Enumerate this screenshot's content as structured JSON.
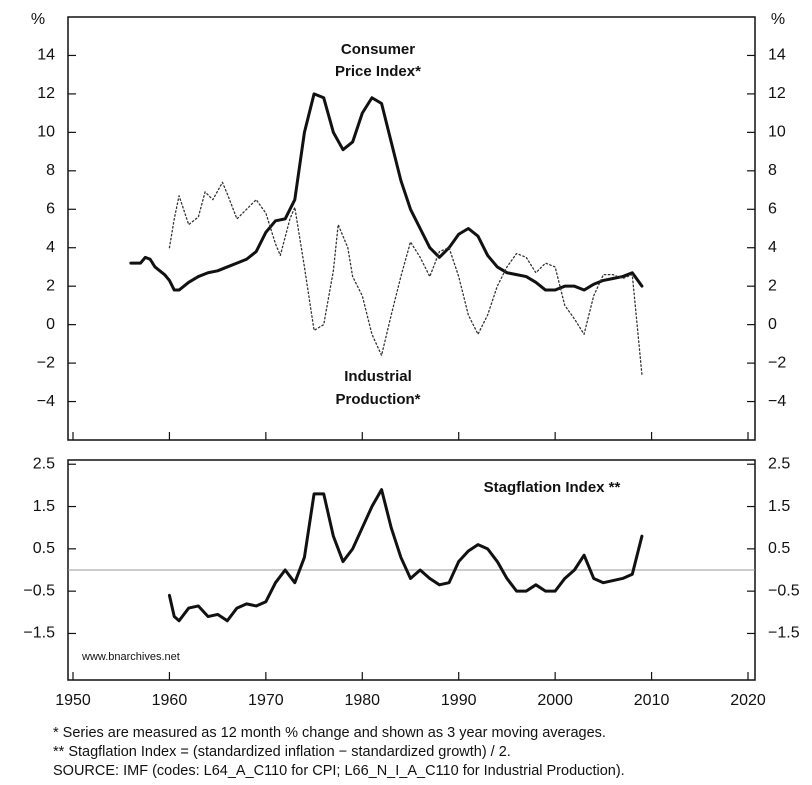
{
  "chart_data": [
    {
      "type": "line",
      "y_unit": "%",
      "annotations": [
        "Consumer",
        "Price Index*",
        "Industrial",
        "Production*"
      ],
      "xlim": [
        1950,
        2020
      ],
      "ylim": [
        -6,
        16
      ],
      "yticks": [
        {
          "value": -4,
          "label": "−4"
        },
        {
          "value": -2,
          "label": "−2"
        },
        0,
        2,
        4,
        6,
        8,
        10,
        12,
        14
      ],
      "series": [
        {
          "name": "Consumer Price Index*",
          "color": "#111111",
          "dash": "solid",
          "x": [
            1956,
            1957,
            1957.5,
            1958,
            1958.5,
            1959.5,
            1960,
            1960.5,
            1961,
            1962,
            1963,
            1964,
            1965,
            1966,
            1967,
            1968,
            1969,
            1970,
            1971,
            1972,
            1973,
            1974,
            1975,
            1976,
            1977,
            1978,
            1979,
            1980,
            1981,
            1982,
            1983,
            1984,
            1985,
            1986,
            1987,
            1988,
            1989,
            1990,
            1991,
            1992,
            1993,
            1994,
            1995,
            1996,
            1997,
            1998,
            1999,
            2000,
            2001,
            2002,
            2003,
            2004,
            2005,
            2006,
            2007,
            2008,
            2009
          ],
          "values": [
            3.2,
            3.2,
            3.5,
            3.4,
            3.0,
            2.6,
            2.3,
            1.8,
            1.8,
            2.2,
            2.5,
            2.7,
            2.8,
            3.0,
            3.2,
            3.4,
            3.8,
            4.8,
            5.4,
            5.5,
            6.5,
            10.0,
            12.0,
            11.8,
            10.0,
            9.1,
            9.5,
            11.0,
            11.8,
            11.5,
            9.5,
            7.5,
            6.0,
            5.0,
            4.0,
            3.5,
            4.0,
            4.7,
            5.0,
            4.6,
            3.6,
            3.0,
            2.7,
            2.6,
            2.5,
            2.2,
            1.8,
            1.8,
            2.0,
            2.0,
            1.8,
            2.1,
            2.3,
            2.4,
            2.5,
            2.7,
            2.0
          ]
        },
        {
          "name": "Industrial Production*",
          "color": "#333333",
          "dash": "dotted",
          "x": [
            1960,
            1960.5,
            1961,
            1962,
            1963,
            1963.7,
            1964.5,
            1965.5,
            1966,
            1967,
            1968,
            1969,
            1970,
            1971,
            1971.5,
            1972.5,
            1973,
            1974,
            1975,
            1976,
            1977,
            1977.5,
            1978.5,
            1979,
            1980,
            1981,
            1982,
            1983,
            1984,
            1985,
            1986,
            1987,
            1988,
            1989,
            1990,
            1991,
            1992,
            1993,
            1994,
            1995,
            1996,
            1997,
            1998,
            1999,
            2000,
            2001,
            2002,
            2003,
            2004,
            2005,
            2006,
            2007,
            2008,
            2008.5,
            2009
          ],
          "values": [
            4.0,
            5.5,
            6.7,
            5.2,
            5.6,
            6.9,
            6.5,
            7.4,
            6.8,
            5.5,
            6.0,
            6.5,
            5.8,
            4.2,
            3.6,
            5.5,
            6.1,
            3.0,
            -0.3,
            0.0,
            2.8,
            5.2,
            4.0,
            2.5,
            1.5,
            -0.5,
            -1.6,
            0.5,
            2.5,
            4.3,
            3.5,
            2.5,
            3.8,
            4.0,
            2.5,
            0.5,
            -0.5,
            0.5,
            2.0,
            3.0,
            3.7,
            3.5,
            2.7,
            3.2,
            3.0,
            1.0,
            0.3,
            -0.5,
            1.5,
            2.6,
            2.6,
            2.4,
            2.6,
            0.0,
            -2.6
          ]
        }
      ]
    },
    {
      "type": "line",
      "title": "Stagflation Index **",
      "watermark": "www.bnarchives.net",
      "xlim": [
        1950,
        2020
      ],
      "xticks": [
        1950,
        1960,
        1970,
        1980,
        1990,
        2000,
        2010,
        2020
      ],
      "ylim": [
        -2.6,
        2.6
      ],
      "yticks": [
        {
          "value": -1.5,
          "label": "−1.5"
        },
        {
          "value": -0.5,
          "label": "−0.5"
        },
        0.5,
        1.5,
        2.5
      ],
      "reference_line": 0,
      "series": [
        {
          "name": "Stagflation Index **",
          "color": "#111111",
          "dash": "solid",
          "x": [
            1960,
            1960.5,
            1961,
            1962,
            1963,
            1964,
            1965,
            1966,
            1967,
            1968,
            1969,
            1970,
            1971,
            1972,
            1973,
            1974,
            1975,
            1976,
            1977,
            1978,
            1979,
            1980,
            1981,
            1982,
            1983,
            1984,
            1985,
            1986,
            1987,
            1988,
            1989,
            1990,
            1991,
            1992,
            1993,
            1994,
            1995,
            1996,
            1997,
            1998,
            1999,
            2000,
            2001,
            2002,
            2003,
            2004,
            2005,
            2006,
            2007,
            2008,
            2009
          ],
          "values": [
            -0.6,
            -1.1,
            -1.2,
            -0.9,
            -0.85,
            -1.1,
            -1.05,
            -1.2,
            -0.9,
            -0.8,
            -0.85,
            -0.75,
            -0.3,
            0.0,
            -0.3,
            0.3,
            1.8,
            1.8,
            0.8,
            0.2,
            0.5,
            1.0,
            1.5,
            1.9,
            1.0,
            0.3,
            -0.2,
            0.0,
            -0.2,
            -0.35,
            -0.3,
            0.2,
            0.45,
            0.6,
            0.5,
            0.2,
            -0.2,
            -0.5,
            -0.5,
            -0.35,
            -0.5,
            -0.5,
            -0.2,
            0.0,
            0.35,
            -0.2,
            -0.3,
            -0.25,
            -0.2,
            -0.1,
            0.8
          ]
        }
      ]
    }
  ],
  "notes": [
    "* Series are measured as 12 month % change and shown as 3 year moving averages.",
    "** Stagflation Index = (standardized inflation − standardized growth) / 2.",
    "SOURCE: IMF (codes: L64_A_C110 for CPI; L66_N_I_A_C110 for Industrial Production)."
  ]
}
